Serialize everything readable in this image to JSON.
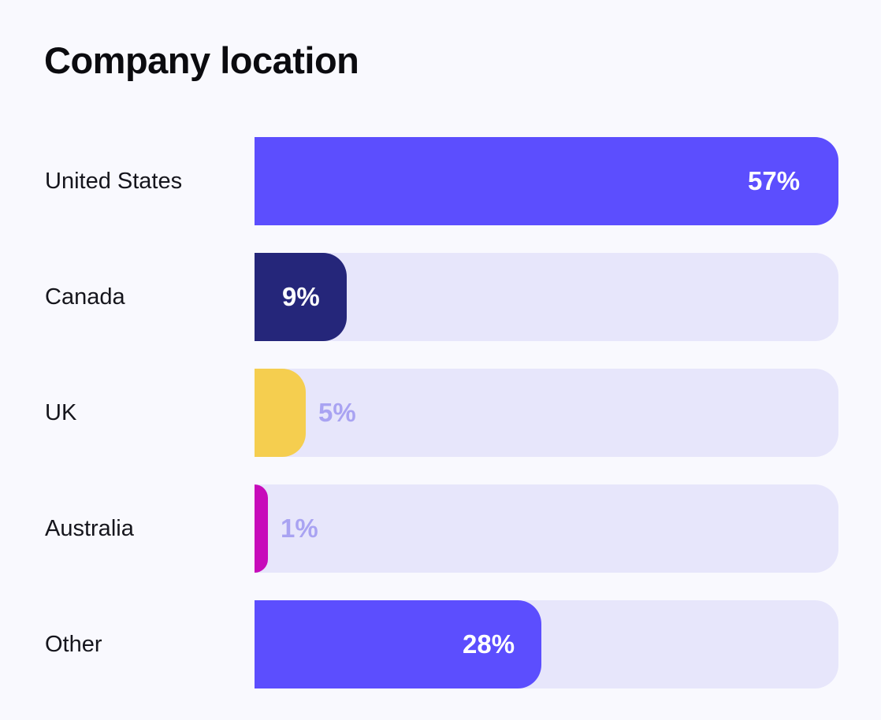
{
  "title": "Company location",
  "chart_data": {
    "type": "bar",
    "orientation": "horizontal",
    "title": "Company location",
    "xlabel": "",
    "ylabel": "",
    "xlim": [
      0,
      57
    ],
    "grid": false,
    "categories": [
      "United States",
      "Canada",
      "UK",
      "Australia",
      "Other"
    ],
    "values": [
      57,
      9,
      5,
      1,
      28
    ],
    "value_labels": [
      "57%",
      "9%",
      "5%",
      "1%",
      "28%"
    ],
    "colors": [
      "#5c4efe",
      "#25267a",
      "#f5ce4f",
      "#c70cba",
      "#5c4efe"
    ],
    "label_colors": [
      "#ffffff",
      "#ffffff",
      "#a9a3f2",
      "#a9a3f2",
      "#ffffff"
    ],
    "track_color": "#e7e6fb"
  }
}
